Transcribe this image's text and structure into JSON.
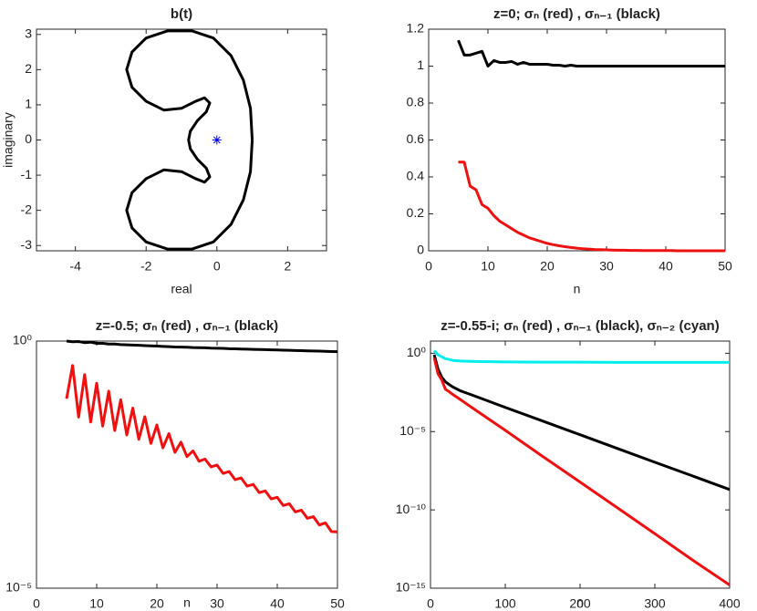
{
  "chart_data": [
    {
      "type": "line",
      "title": "b(t)",
      "xlabel": "real",
      "ylabel": "imaginary",
      "xlim": [
        -5.1,
        3.1
      ],
      "ylim": [
        -3.15,
        3.15
      ],
      "xticks": [
        -4,
        -2,
        0,
        2
      ],
      "yticks": [
        -3,
        -2,
        -1,
        0,
        1,
        2,
        3
      ],
      "series": [
        {
          "color": "#000000",
          "x": [
            1,
            0.95,
            0.75,
            0.4,
            -0.1,
            -0.7,
            -1.4,
            -2.0,
            -2.4,
            -2.55,
            -2.4,
            -2.0,
            -1.5,
            -1.0,
            -0.6,
            -0.35,
            -0.2,
            -0.3,
            -0.55,
            -0.75,
            -0.8,
            -0.75,
            -0.55,
            -0.3,
            -0.2,
            -0.35,
            -0.6,
            -1.0,
            -1.5,
            -2.0,
            -2.4,
            -2.55,
            -2.4,
            -2.0,
            -1.4,
            -0.7,
            -0.1,
            0.4,
            0.75,
            0.95,
            1
          ],
          "values": [
            0,
            0.9,
            1.7,
            2.4,
            2.9,
            3.1,
            3.1,
            2.9,
            2.5,
            2.0,
            1.5,
            1.1,
            0.85,
            0.9,
            1.1,
            1.2,
            1.05,
            0.8,
            0.55,
            0.25,
            0,
            -0.25,
            -0.55,
            -0.8,
            -1.05,
            -1.2,
            -1.1,
            -0.9,
            -0.85,
            -1.1,
            -1.5,
            -2.0,
            -2.5,
            -2.9,
            -3.1,
            -3.1,
            -2.9,
            -2.4,
            -1.7,
            -0.9,
            0
          ]
        },
        {
          "color": "#0000ff",
          "marker": "asterisk",
          "x": [
            0
          ],
          "values": [
            0
          ]
        }
      ]
    },
    {
      "type": "line",
      "title": "z=0; σₙ (red) , σₙ₋₁ (black)",
      "xlabel": "n",
      "xlim": [
        0,
        50
      ],
      "ylim": [
        0,
        1.2
      ],
      "xticks": [
        0,
        10,
        20,
        30,
        40,
        50
      ],
      "yticks": [
        0,
        0.2,
        0.4,
        0.6,
        0.8,
        1,
        1.2
      ],
      "x": [
        5,
        6,
        7,
        8,
        9,
        10,
        11,
        12,
        13,
        14,
        15,
        16,
        17,
        18,
        19,
        20,
        21,
        22,
        23,
        24,
        25,
        26,
        27,
        28,
        29,
        30,
        31,
        32,
        33,
        34,
        35,
        36,
        37,
        38,
        39,
        40,
        41,
        42,
        43,
        44,
        45,
        46,
        47,
        48,
        49,
        50
      ],
      "series": [
        {
          "color": "#000000",
          "values": [
            1.14,
            1.06,
            1.06,
            1.07,
            1.08,
            1.0,
            1.03,
            1.02,
            1.02,
            1.025,
            1.01,
            1.02,
            1.01,
            1.01,
            1.01,
            1.01,
            1.005,
            1.005,
            1.0,
            1.005,
            1.0,
            1.0,
            1.0,
            1.0,
            1.0,
            1.0,
            1.0,
            1.0,
            1.0,
            1.0,
            1.0,
            1.0,
            1.0,
            1.0,
            1.0,
            1.0,
            1.0,
            1.0,
            1.0,
            1.0,
            1.0,
            1.0,
            1.0,
            1.0,
            1.0,
            1.0
          ]
        },
        {
          "color": "#ee1111",
          "values": [
            0.48,
            0.48,
            0.35,
            0.33,
            0.25,
            0.23,
            0.19,
            0.16,
            0.14,
            0.12,
            0.1,
            0.085,
            0.07,
            0.06,
            0.05,
            0.04,
            0.033,
            0.027,
            0.022,
            0.018,
            0.014,
            0.011,
            0.009,
            0.007,
            0.006,
            0.005,
            0.004,
            0.003,
            0.003,
            0.002,
            0.002,
            0.001,
            0.001,
            0.001,
            0.001,
            0.001,
            0.001,
            0,
            0,
            0,
            0,
            0,
            0,
            0,
            0,
            0
          ]
        }
      ]
    },
    {
      "type": "line",
      "title": "z=-0.5; σₙ (red) , σₙ₋₁ (black)",
      "xlabel": "n",
      "ylog": true,
      "xlim": [
        0,
        50
      ],
      "ylim": [
        1e-05,
        1
      ],
      "xticks": [
        0,
        10,
        20,
        30,
        40,
        50
      ],
      "yticks": [
        {
          "value": 1e-05,
          "label": "10⁻⁵"
        },
        {
          "value": 1,
          "label": "10⁰"
        }
      ],
      "x": [
        5,
        6,
        7,
        8,
        9,
        10,
        11,
        12,
        13,
        14,
        15,
        16,
        17,
        18,
        19,
        20,
        21,
        22,
        23,
        24,
        25,
        26,
        27,
        28,
        29,
        30,
        31,
        32,
        33,
        34,
        35,
        36,
        37,
        38,
        39,
        40,
        41,
        42,
        43,
        44,
        45,
        46,
        47,
        48,
        49,
        50
      ],
      "series": [
        {
          "color": "#000000",
          "values": [
            1,
            0.97,
            0.98,
            0.93,
            0.95,
            0.9,
            0.9,
            0.87,
            0.87,
            0.85,
            0.84,
            0.83,
            0.82,
            0.81,
            0.8,
            0.79,
            0.78,
            0.77,
            0.76,
            0.755,
            0.75,
            0.74,
            0.735,
            0.73,
            0.72,
            0.715,
            0.71,
            0.7,
            0.695,
            0.69,
            0.685,
            0.68,
            0.675,
            0.67,
            0.665,
            0.66,
            0.655,
            0.65,
            0.645,
            0.64,
            0.635,
            0.63,
            0.625,
            0.62,
            0.615,
            0.61
          ]
        },
        {
          "color": "#ee1111",
          "values": [
            0.068,
            0.32,
            0.029,
            0.21,
            0.023,
            0.14,
            0.019,
            0.097,
            0.0155,
            0.065,
            0.0126,
            0.044,
            0.0103,
            0.0295,
            0.0085,
            0.02,
            0.0069,
            0.0134,
            0.0056,
            0.009,
            0.0046,
            0.006,
            0.0037,
            0.0041,
            0.00285,
            0.0031,
            0.0021,
            0.0023,
            0.00157,
            0.0017,
            0.00116,
            0.00126,
            0.00086,
            0.00093,
            0.00064,
            0.00069,
            0.00047,
            0.00051,
            0.00035,
            0.00038,
            0.00026,
            0.00028,
            0.00019,
            0.00021,
            0.00014,
            0.000138
          ]
        }
      ]
    },
    {
      "type": "line",
      "title": "z=-0.55-i; σₙ (red) , σₙ₋₁ (black), σₙ₋₂ (cyan)",
      "xlabel": "n",
      "ylog": true,
      "xlim": [
        0,
        400
      ],
      "ylim": [
        1e-15,
        6
      ],
      "xticks": [
        0,
        100,
        200,
        300,
        400
      ],
      "yticks": [
        {
          "value": 1e-15,
          "label": "10⁻¹⁵"
        },
        {
          "value": 1e-10,
          "label": "10⁻¹⁰"
        },
        {
          "value": 1e-05,
          "label": "10⁻⁵"
        },
        {
          "value": 1,
          "label": "10⁰"
        }
      ],
      "x": [
        5,
        10,
        15,
        20,
        25,
        30,
        40,
        60,
        100,
        150,
        200,
        250,
        300,
        350,
        400
      ],
      "series": [
        {
          "color": "#00eeee",
          "values": [
            1.5,
            0.8,
            0.6,
            0.45,
            0.4,
            0.35,
            0.32,
            0.3,
            0.28,
            0.27,
            0.27,
            0.26,
            0.26,
            0.26,
            0.26
          ]
        },
        {
          "color": "#000000",
          "values": [
            0.8,
            0.1,
            0.03,
            0.015,
            0.01,
            0.007,
            0.004,
            0.0018,
            0.00035,
            4.7e-05,
            6.3e-06,
            8.3e-07,
            1.1e-07,
            1.5e-08,
            2e-09
          ]
        },
        {
          "color": "#ee1111",
          "values": [
            0.5,
            0.05,
            0.02,
            0.005,
            0.0035,
            0.0023,
            0.0011,
            0.00024,
            1.2e-05,
            2.6e-07,
            6e-09,
            1.35e-10,
            3e-12,
            6.5e-14,
            1.6e-15
          ]
        }
      ]
    }
  ]
}
